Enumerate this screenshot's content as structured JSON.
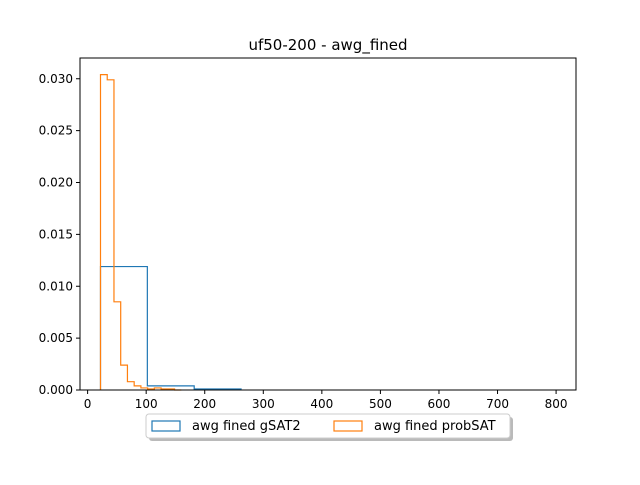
{
  "chart_data": {
    "type": "histogram",
    "title": "uf50-200 - awg_fined",
    "xlabel": "",
    "ylabel": "",
    "xlim": [
      -13,
      834
    ],
    "ylim": [
      0,
      0.032
    ],
    "x_ticks": [
      0,
      100,
      200,
      300,
      400,
      500,
      600,
      700,
      800
    ],
    "y_ticks": [
      0.0,
      0.005,
      0.01,
      0.015,
      0.02,
      0.025,
      0.03
    ],
    "y_tick_labels": [
      "0.000",
      "0.005",
      "0.010",
      "0.015",
      "0.020",
      "0.025",
      "0.030"
    ],
    "grid": false,
    "legend": {
      "placement": "lower-center-outside",
      "columns": 2
    },
    "series": [
      {
        "name": "awg fined gSAT2",
        "color": "#1f77b4",
        "style": "step",
        "bin_edges": [
          22,
          102,
          182,
          262
        ],
        "values": [
          0.0119,
          0.0004,
          0.0001
        ]
      },
      {
        "name": "awg fined probSAT",
        "color": "#ff7f0e",
        "style": "step",
        "bin_edges": [
          22,
          33.5,
          45,
          56.5,
          68,
          79.5,
          91,
          102.5,
          114,
          125.5,
          137,
          148.5,
          160
        ],
        "values": [
          0.0304,
          0.0299,
          0.0085,
          0.0024,
          0.0008,
          0.0004,
          0.0002,
          0.0001,
          0.0002,
          0.0001,
          0.0001,
          0.0
        ]
      }
    ]
  }
}
